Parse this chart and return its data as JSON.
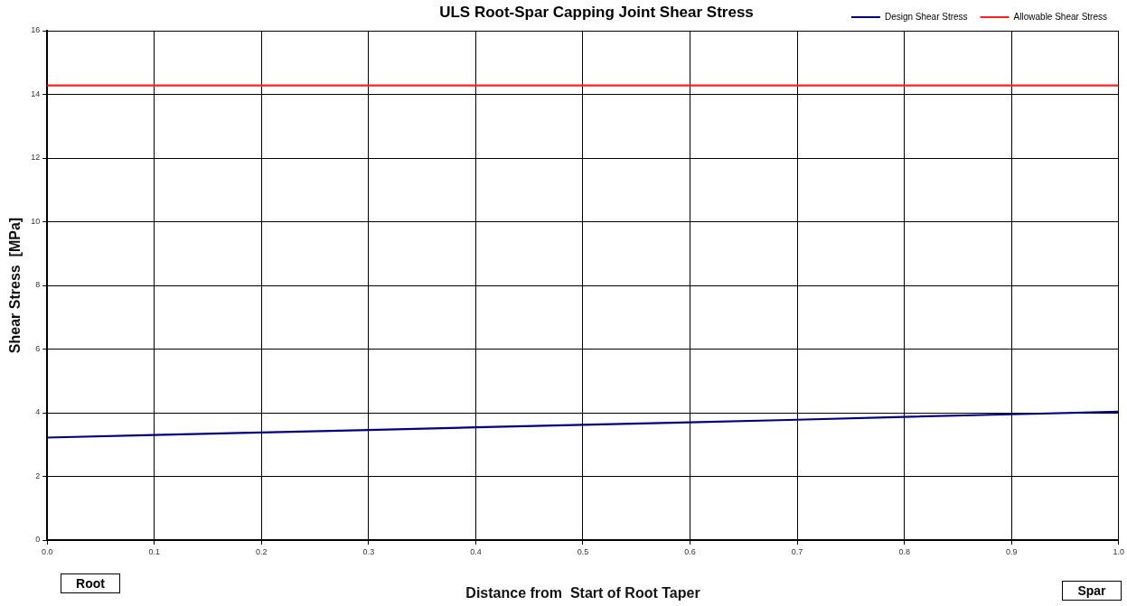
{
  "chart_data": {
    "type": "line",
    "title": "ULS Root-Spar Capping Joint Shear Stress",
    "xlabel": "Distance from  Start of Root Taper",
    "ylabel": "Shear Stress  [MPa]",
    "x": [
      0,
      0.1,
      0.2,
      0.3,
      0.4,
      0.5,
      0.6,
      0.7,
      0.8,
      0.9,
      1.0
    ],
    "series": [
      {
        "name": "Design Shear Stress",
        "color": "#000080",
        "values": [
          3.22,
          3.3,
          3.38,
          3.46,
          3.54,
          3.62,
          3.7,
          3.78,
          3.87,
          3.95,
          4.03
        ]
      },
      {
        "name": "Allowable Shear Stress",
        "color": "#ff2020",
        "x": [
          0,
          1.0
        ],
        "values": [
          14.28,
          14.28
        ]
      }
    ],
    "xlim": [
      0,
      1.0
    ],
    "xticks": [
      {
        "value": 0,
        "label": "0.0"
      },
      0.1,
      0.2,
      0.3,
      0.4,
      0.5,
      0.6,
      0.7,
      0.8,
      0.9,
      {
        "value": 1.0,
        "label": "1.0"
      }
    ],
    "ylim": [
      0,
      16
    ],
    "yticks": [
      0,
      2,
      4,
      6,
      8,
      10,
      12,
      14,
      16
    ],
    "grid": true,
    "legend": "top right",
    "marker": "none",
    "line_style": "solid",
    "annotations": [
      "Root",
      "Spar"
    ]
  }
}
